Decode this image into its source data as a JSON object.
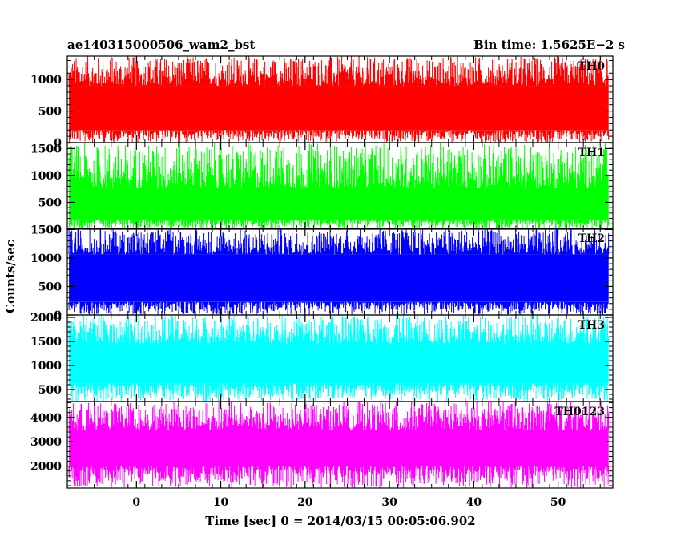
{
  "header": {
    "title": "ae140315000506_wam2_bst",
    "bin_time": "Bin time: 1.5625E−2 s"
  },
  "axes": {
    "ylabel": "Counts/sec",
    "xlabel": "Time [sec] 0 = 2014/03/15 00:05:06.902",
    "xlim": [
      -8.2,
      56.5
    ],
    "xticks": [
      0,
      10,
      20,
      30,
      40,
      50
    ],
    "xtick_labels": [
      "0",
      "10",
      "20",
      "30",
      "40",
      "50"
    ]
  },
  "chart_data": {
    "type": "line",
    "x_range": [
      -8.0,
      56.0
    ],
    "bin_time_s": 0.015625,
    "panels": [
      {
        "name": "TH0",
        "color": "#ff0000",
        "ylim": [
          0,
          1370
        ],
        "yticks": [
          0,
          500,
          1000
        ],
        "ytick_labels": [
          "0",
          "500",
          "1000"
        ],
        "band_low": [
          0,
          200
        ],
        "band_core": [
          200,
          900
        ],
        "band_high": [
          900,
          1370
        ]
      },
      {
        "name": "TH1",
        "color": "#00ff00",
        "ylim": [
          0,
          1610
        ],
        "yticks": [
          0,
          500,
          1000,
          1500
        ],
        "ytick_labels": [
          "0",
          "500",
          "1000",
          "1500"
        ],
        "band_low": [
          0,
          180
        ],
        "band_core": [
          180,
          760
        ],
        "band_high": [
          760,
          1600
        ]
      },
      {
        "name": "TH2",
        "color": "#0000ff",
        "ylim": [
          0,
          1520
        ],
        "yticks": [
          0,
          500,
          1000,
          1500
        ],
        "ytick_labels": [
          "0",
          "500",
          "1000",
          "1500"
        ],
        "band_low": [
          0,
          230
        ],
        "band_core": [
          230,
          1060
        ],
        "band_high": [
          1060,
          1520
        ]
      },
      {
        "name": "TH3",
        "color": "#00ffff",
        "ylim": [
          250,
          2050
        ],
        "yticks": [
          500,
          1000,
          1500,
          2000
        ],
        "ytick_labels": [
          "500",
          "1000",
          "1500",
          "2000"
        ],
        "band_low": [
          250,
          620
        ],
        "band_core": [
          620,
          1450
        ],
        "band_high": [
          1450,
          2050
        ]
      },
      {
        "name": "TH0123",
        "color": "#ff00ff",
        "ylim": [
          1100,
          4650
        ],
        "yticks": [
          2000,
          3000,
          4000
        ],
        "ytick_labels": [
          "2000",
          "3000",
          "4000"
        ],
        "band_low": [
          1100,
          2000
        ],
        "band_core": [
          2000,
          3450
        ],
        "band_high": [
          3450,
          4650
        ]
      }
    ]
  }
}
